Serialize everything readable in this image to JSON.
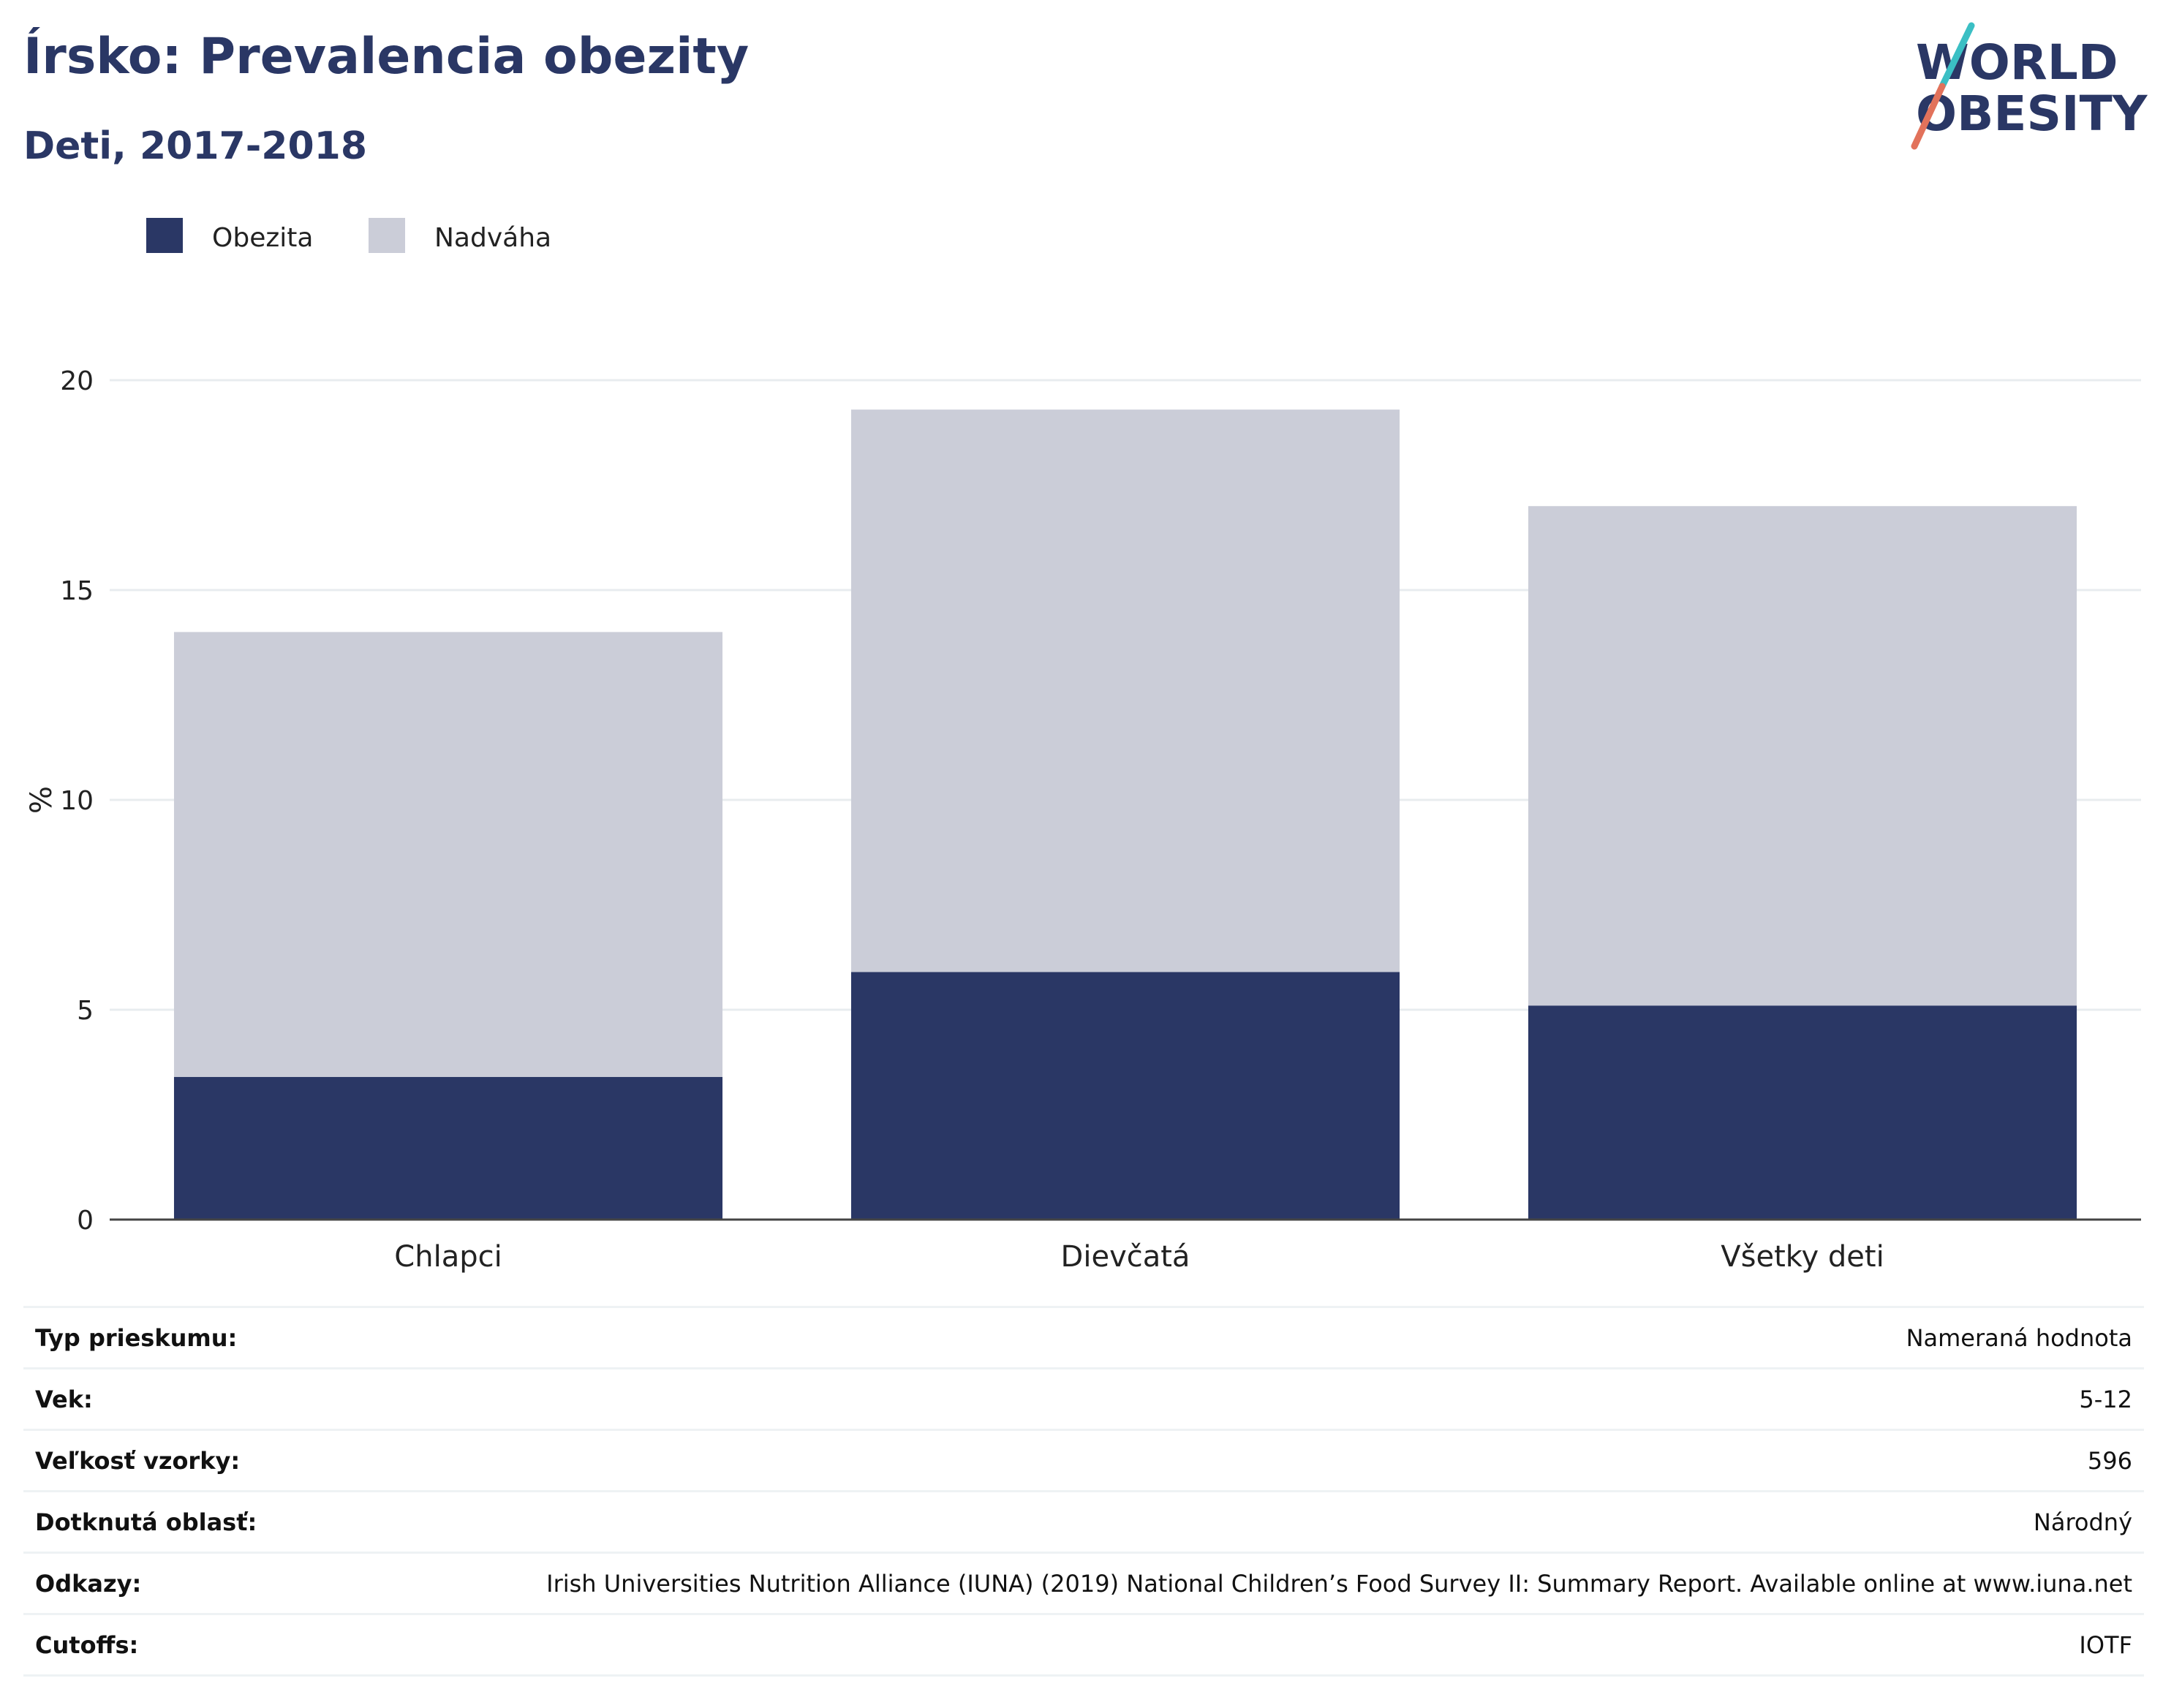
{
  "title": "Írsko: Prevalencia obezity",
  "subtitle": "Deti, 2017-2018",
  "logo": {
    "line1": "WORLD",
    "line2": "OBESITY"
  },
  "colors": {
    "obesity": "#2a3765",
    "overweight": "#cbcdd8",
    "title": "#2a3765",
    "accent_teal": "#3bbfc4",
    "accent_coral": "#e2725b"
  },
  "chart_data": {
    "type": "bar",
    "stacked": true,
    "categories": [
      "Chlapci",
      "Dievčatá",
      "Všetky deti"
    ],
    "series": [
      {
        "name": "Obezita",
        "values": [
          3.4,
          5.9,
          5.1
        ],
        "color": "#2a3765"
      },
      {
        "name": "Nadváha",
        "values": [
          10.6,
          13.4,
          11.9
        ],
        "color": "#cbcdd8"
      }
    ],
    "ylabel": "%",
    "ylim": [
      0,
      20
    ],
    "yticks": [
      0,
      5,
      10,
      15,
      20
    ],
    "grid": true,
    "legend": "top-left"
  },
  "info": [
    {
      "label": "Typ prieskumu:",
      "value": "Nameraná hodnota"
    },
    {
      "label": "Vek:",
      "value": "5-12"
    },
    {
      "label": "Veľkosť vzorky:",
      "value": "596"
    },
    {
      "label": "Dotknutá oblasť:",
      "value": "Národný"
    },
    {
      "label": "Odkazy:",
      "value": "Irish Universities Nutrition Alliance (IUNA) (2019) National Children’s Food Survey II: Summary Report. Available online at www.iuna.net"
    },
    {
      "label": "Cutoffs:",
      "value": "IOTF"
    }
  ]
}
